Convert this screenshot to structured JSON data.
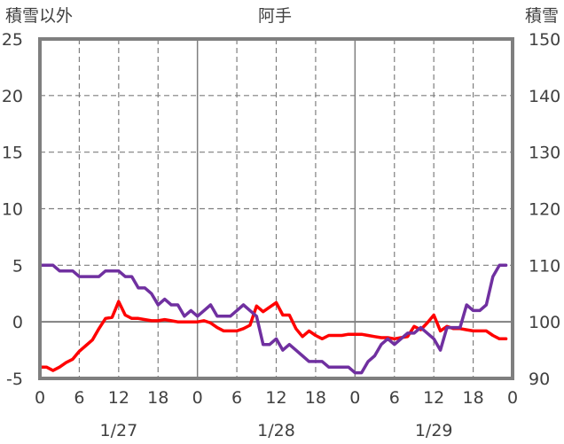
{
  "chart_data": {
    "type": "line",
    "title": "阿手",
    "y_left_label": "積雪以外",
    "y_right_label": "積雪",
    "y_left": {
      "min": -5,
      "max": 25,
      "ticks": [
        25,
        20,
        15,
        10,
        5,
        0,
        -5
      ]
    },
    "y_right": {
      "min": 90,
      "max": 150,
      "ticks": [
        150,
        140,
        130,
        120,
        110,
        100,
        90
      ]
    },
    "x": {
      "min": 0,
      "max": 72,
      "tick_hours": [
        0,
        6,
        12,
        18,
        24,
        30,
        36,
        42,
        48,
        54,
        60,
        66,
        72
      ],
      "tick_labels": [
        "0",
        "6",
        "12",
        "18",
        "0",
        "6",
        "12",
        "18",
        "0",
        "6",
        "12",
        "18",
        "0"
      ]
    },
    "date_labels": [
      {
        "hour": 12,
        "text": "1/27"
      },
      {
        "hour": 36,
        "text": "1/28"
      },
      {
        "hour": 60,
        "text": "1/29"
      }
    ],
    "grid": true,
    "series": [
      {
        "axis": "left",
        "color": "#ff0000",
        "x": [
          0,
          1,
          2,
          3,
          4,
          5,
          6,
          7,
          8,
          9,
          10,
          11,
          12,
          13,
          14,
          15,
          16,
          17,
          18,
          19,
          20,
          21,
          22,
          23,
          24,
          25,
          26,
          27,
          28,
          29,
          30,
          31,
          32,
          33,
          34,
          35,
          36,
          37,
          38,
          39,
          40,
          41,
          42,
          43,
          44,
          45,
          46,
          47,
          48,
          49,
          50,
          51,
          52,
          53,
          54,
          55,
          56,
          57,
          58,
          59,
          60,
          61,
          62,
          63,
          64,
          65,
          66,
          67,
          68,
          69,
          70,
          71
        ],
        "values": [
          -4,
          -4,
          -4.3,
          -4,
          -3.6,
          -3.3,
          -2.6,
          -2.1,
          -1.6,
          -0.6,
          0.3,
          0.4,
          1.8,
          0.6,
          0.3,
          0.3,
          0.2,
          0.1,
          0.1,
          0.2,
          0.1,
          0,
          0,
          0,
          0,
          0.1,
          -0.1,
          -0.5,
          -0.8,
          -0.8,
          -0.8,
          -0.6,
          -0.3,
          1.4,
          0.9,
          1.3,
          1.7,
          0.6,
          0.6,
          -0.6,
          -1.3,
          -0.8,
          -1.2,
          -1.5,
          -1.2,
          -1.2,
          -1.2,
          -1.1,
          -1.1,
          -1.1,
          -1.2,
          -1.3,
          -1.4,
          -1.4,
          -1.5,
          -1.4,
          -1.3,
          -0.4,
          -0.7,
          -0.1,
          0.6,
          -0.8,
          -0.4,
          -0.6,
          -0.6,
          -0.7,
          -0.8,
          -0.8,
          -0.8,
          -1.2,
          -1.5,
          -1.5
        ]
      },
      {
        "axis": "right",
        "color": "#7030a0",
        "x": [
          0,
          1,
          2,
          3,
          4,
          5,
          6,
          7,
          8,
          9,
          10,
          11,
          12,
          13,
          14,
          15,
          16,
          17,
          18,
          19,
          20,
          21,
          22,
          23,
          24,
          25,
          26,
          27,
          28,
          29,
          30,
          31,
          32,
          33,
          34,
          35,
          36,
          37,
          38,
          39,
          40,
          41,
          42,
          43,
          44,
          45,
          46,
          47,
          48,
          49,
          50,
          51,
          52,
          53,
          54,
          55,
          56,
          57,
          58,
          59,
          60,
          61,
          62,
          63,
          64,
          65,
          66,
          67,
          68,
          69,
          70,
          71
        ],
        "values": [
          110,
          110,
          110,
          109,
          109,
          109,
          108,
          108,
          108,
          108,
          109,
          109,
          109,
          108,
          108,
          106,
          106,
          105,
          103,
          104,
          103,
          103,
          101,
          102,
          101,
          102,
          103,
          101,
          101,
          101,
          102,
          103,
          102,
          101,
          96,
          96,
          97,
          95,
          96,
          95,
          94,
          93,
          93,
          93,
          92,
          92,
          92,
          92,
          91,
          91,
          93,
          94,
          96,
          97,
          96,
          97,
          98,
          98,
          99,
          98,
          97,
          95,
          99,
          99,
          99,
          103,
          102,
          102,
          103,
          108,
          110,
          110
        ]
      }
    ]
  }
}
